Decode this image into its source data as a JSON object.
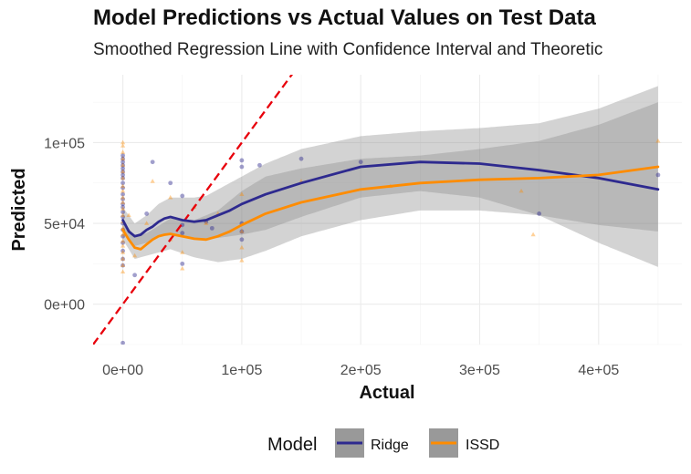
{
  "chart_data": {
    "type": "scatter",
    "title": "Model Predictions vs Actual Values on Test Data",
    "subtitle": "Smoothed Regression Line with Confidence Interval and Theoretic",
    "xlabel": "Actual",
    "ylabel": "Predicted",
    "xlim": [
      -25000,
      470000
    ],
    "ylim": [
      -25000,
      142000
    ],
    "x_ticks": [
      0,
      100000,
      200000,
      300000,
      400000
    ],
    "x_tick_labels": [
      "0e+00",
      "1e+05",
      "2e+05",
      "3e+05",
      "4e+05"
    ],
    "y_ticks": [
      0,
      50000,
      100000
    ],
    "y_tick_labels": [
      "0e+00",
      "5e+04",
      "1e+05"
    ],
    "grid": true,
    "legend": {
      "title": "Model",
      "position": "bottom",
      "entries": [
        "Ridge",
        "ISSD"
      ]
    },
    "reference_line": {
      "type": "identity",
      "color": "#e8000b",
      "style": "dashed"
    },
    "series": [
      {
        "name": "Ridge",
        "color": "#2e2a8f",
        "smooth": [
          [
            0,
            52000
          ],
          [
            5000,
            45000
          ],
          [
            10000,
            42000
          ],
          [
            15000,
            43000
          ],
          [
            20000,
            46000
          ],
          [
            25000,
            48000
          ],
          [
            30000,
            51000
          ],
          [
            35000,
            53000
          ],
          [
            40000,
            54000
          ],
          [
            45000,
            53000
          ],
          [
            50000,
            52000
          ],
          [
            60000,
            51000
          ],
          [
            70000,
            52000
          ],
          [
            80000,
            55000
          ],
          [
            90000,
            58000
          ],
          [
            100000,
            62000
          ],
          [
            120000,
            68000
          ],
          [
            150000,
            75000
          ],
          [
            200000,
            85000
          ],
          [
            250000,
            88000
          ],
          [
            300000,
            87000
          ],
          [
            350000,
            83000
          ],
          [
            400000,
            78000
          ],
          [
            450000,
            71000
          ]
        ],
        "ci_lower": [
          [
            0,
            45000
          ],
          [
            10000,
            36000
          ],
          [
            20000,
            38000
          ],
          [
            30000,
            42000
          ],
          [
            40000,
            44000
          ],
          [
            50000,
            42000
          ],
          [
            60000,
            40000
          ],
          [
            70000,
            40000
          ],
          [
            80000,
            41000
          ],
          [
            100000,
            43000
          ],
          [
            120000,
            46000
          ],
          [
            150000,
            54000
          ],
          [
            200000,
            66000
          ],
          [
            250000,
            70000
          ],
          [
            300000,
            66000
          ],
          [
            350000,
            55000
          ],
          [
            400000,
            38000
          ],
          [
            450000,
            23000
          ]
        ],
        "ci_upper": [
          [
            0,
            60000
          ],
          [
            10000,
            50000
          ],
          [
            20000,
            55000
          ],
          [
            30000,
            62000
          ],
          [
            40000,
            66000
          ],
          [
            50000,
            66000
          ],
          [
            60000,
            66000
          ],
          [
            70000,
            67000
          ],
          [
            80000,
            71000
          ],
          [
            100000,
            79000
          ],
          [
            120000,
            87000
          ],
          [
            150000,
            96000
          ],
          [
            200000,
            104000
          ],
          [
            250000,
            107000
          ],
          [
            300000,
            109000
          ],
          [
            350000,
            112000
          ],
          [
            400000,
            121000
          ],
          [
            450000,
            135000
          ]
        ],
        "points": [
          [
            0,
            92000
          ],
          [
            0,
            90000
          ],
          [
            0,
            88000
          ],
          [
            0,
            86000
          ],
          [
            0,
            84000
          ],
          [
            0,
            82000
          ],
          [
            0,
            80000
          ],
          [
            0,
            78000
          ],
          [
            0,
            75000
          ],
          [
            0,
            72000
          ],
          [
            0,
            68000
          ],
          [
            0,
            65000
          ],
          [
            0,
            62000
          ],
          [
            0,
            60000
          ],
          [
            0,
            57000
          ],
          [
            0,
            54000
          ],
          [
            0,
            50000
          ],
          [
            0,
            46000
          ],
          [
            0,
            42000
          ],
          [
            0,
            38000
          ],
          [
            0,
            33000
          ],
          [
            0,
            28000
          ],
          [
            0,
            24000
          ],
          [
            0,
            -24000
          ],
          [
            10000,
            18000
          ],
          [
            20000,
            56000
          ],
          [
            25000,
            88000
          ],
          [
            40000,
            75000
          ],
          [
            50000,
            67000
          ],
          [
            50000,
            49000
          ],
          [
            50000,
            44000
          ],
          [
            50000,
            25000
          ],
          [
            70000,
            51000
          ],
          [
            75000,
            47000
          ],
          [
            100000,
            89000
          ],
          [
            100000,
            85000
          ],
          [
            100000,
            50000
          ],
          [
            100000,
            45000
          ],
          [
            100000,
            40000
          ],
          [
            115000,
            86000
          ],
          [
            150000,
            90000
          ],
          [
            200000,
            88000
          ],
          [
            350000,
            56000
          ],
          [
            450000,
            80000
          ]
        ]
      },
      {
        "name": "ISSD",
        "color": "#ff8c00",
        "smooth": [
          [
            0,
            46000
          ],
          [
            5000,
            40000
          ],
          [
            10000,
            35000
          ],
          [
            15000,
            34000
          ],
          [
            20000,
            37000
          ],
          [
            25000,
            40000
          ],
          [
            30000,
            42000
          ],
          [
            35000,
            43000
          ],
          [
            40000,
            43500
          ],
          [
            50000,
            42000
          ],
          [
            60000,
            40500
          ],
          [
            70000,
            40000
          ],
          [
            80000,
            42000
          ],
          [
            90000,
            45000
          ],
          [
            100000,
            49000
          ],
          [
            120000,
            56000
          ],
          [
            150000,
            63000
          ],
          [
            200000,
            71000
          ],
          [
            250000,
            75000
          ],
          [
            300000,
            77000
          ],
          [
            350000,
            78000
          ],
          [
            400000,
            80000
          ],
          [
            450000,
            85000
          ]
        ],
        "ci_lower": [
          [
            0,
            40000
          ],
          [
            10000,
            28000
          ],
          [
            20000,
            30000
          ],
          [
            40000,
            34000
          ],
          [
            60000,
            29000
          ],
          [
            80000,
            26000
          ],
          [
            100000,
            28000
          ],
          [
            120000,
            33000
          ],
          [
            150000,
            42000
          ],
          [
            200000,
            52000
          ],
          [
            250000,
            58000
          ],
          [
            300000,
            58000
          ],
          [
            350000,
            55000
          ],
          [
            400000,
            49000
          ],
          [
            450000,
            45000
          ]
        ],
        "ci_upper": [
          [
            0,
            52000
          ],
          [
            10000,
            42000
          ],
          [
            20000,
            44000
          ],
          [
            40000,
            53000
          ],
          [
            60000,
            52000
          ],
          [
            80000,
            58000
          ],
          [
            100000,
            70000
          ],
          [
            120000,
            79000
          ],
          [
            150000,
            84000
          ],
          [
            200000,
            90000
          ],
          [
            250000,
            92000
          ],
          [
            300000,
            96000
          ],
          [
            350000,
            101000
          ],
          [
            400000,
            111000
          ],
          [
            450000,
            125000
          ]
        ],
        "points": [
          [
            0,
            100000
          ],
          [
            0,
            98000
          ],
          [
            0,
            94000
          ],
          [
            0,
            90000
          ],
          [
            0,
            86000
          ],
          [
            0,
            82000
          ],
          [
            0,
            78000
          ],
          [
            0,
            73000
          ],
          [
            0,
            70000
          ],
          [
            0,
            66000
          ],
          [
            0,
            63000
          ],
          [
            0,
            59000
          ],
          [
            0,
            55000
          ],
          [
            0,
            51000
          ],
          [
            0,
            47000
          ],
          [
            0,
            43000
          ],
          [
            0,
            39000
          ],
          [
            0,
            36000
          ],
          [
            0,
            32000
          ],
          [
            0,
            28000
          ],
          [
            0,
            24000
          ],
          [
            0,
            20000
          ],
          [
            5000,
            55000
          ],
          [
            10000,
            30000
          ],
          [
            20000,
            50000
          ],
          [
            25000,
            76000
          ],
          [
            40000,
            66000
          ],
          [
            40000,
            40000
          ],
          [
            50000,
            32000
          ],
          [
            50000,
            22000
          ],
          [
            60000,
            60000
          ],
          [
            70000,
            50000
          ],
          [
            80000,
            56000
          ],
          [
            100000,
            68000
          ],
          [
            100000,
            45000
          ],
          [
            100000,
            35000
          ],
          [
            100000,
            27000
          ],
          [
            150000,
            76000
          ],
          [
            225000,
            73000
          ],
          [
            335000,
            70000
          ],
          [
            345000,
            43000
          ],
          [
            450000,
            101000
          ]
        ]
      }
    ]
  }
}
